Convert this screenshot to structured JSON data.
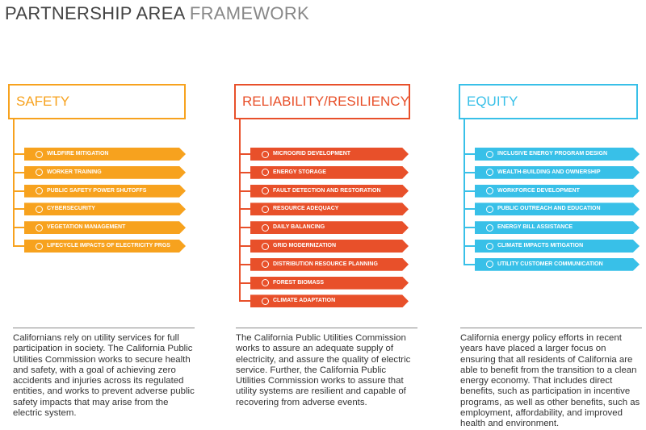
{
  "title": {
    "main": "PARTNERSHIP AREA ",
    "light": "FRAMEWORK"
  },
  "columns": [
    {
      "header": "SAFETY",
      "color": "#f7a21e",
      "items": [
        "WILDFIRE MITIGATION",
        "WORKER TRAINING",
        "PUBLIC SAFETY POWER SHUTOFFS",
        "CYBERSECURITY",
        "VEGETATION MANAGEMENT",
        "LIFECYCLE IMPACTS OF ELECTRICITY PRGS"
      ],
      "description": "Californians rely on utility services for full participation in society. The California Public Utilities Commission works to secure health and safety, with a goal of achieving zero accidents and injuries across its regulated entities, and works to prevent adverse public safety impacts that may arise from the electric system."
    },
    {
      "header": "RELIABILITY/RESILIENCY",
      "color": "#e8502a",
      "items": [
        "MICROGRID DEVELOPMENT",
        "ENERGY STORAGE",
        "FAULT DETECTION AND RESTORATION",
        "RESOURCE ADEQUACY",
        "DAILY BALANCING",
        "GRID MODERNIZATION",
        "DISTRIBUTION RESOURCE PLANNING",
        "FOREST BIOMASS",
        "CLIMATE ADAPTATION"
      ],
      "description": "The California Public Utilities Commission works to assure an adequate supply of electricity, and assure the quality of electric service. Further, the California Public Utilities Commission works to assure that utility systems are resilient and capable of recovering from adverse events."
    },
    {
      "header": "EQUITY",
      "color": "#38c0e8",
      "items": [
        "INCLUSIVE ENERGY PROGRAM DESIGN",
        "WEALTH-BUILDING AND OWNERSHIP",
        "WORKFORCE DEVELOPMENT",
        "PUBLIC OUTREACH AND EDUCATION",
        "ENERGY BILL ASSISTANCE",
        "CLIMATE IMPACTS MITIGATION",
        "UTILITY CUSTOMER COMMUNICATION"
      ],
      "description": "California energy policy efforts in recent years have placed a larger focus on ensuring that all residents of California are able to benefit from the transition to a clean energy economy. That includes direct benefits, such as participation in incentive programs, as well as other benefits, such as employment, affordability, and improved health and environment."
    }
  ]
}
